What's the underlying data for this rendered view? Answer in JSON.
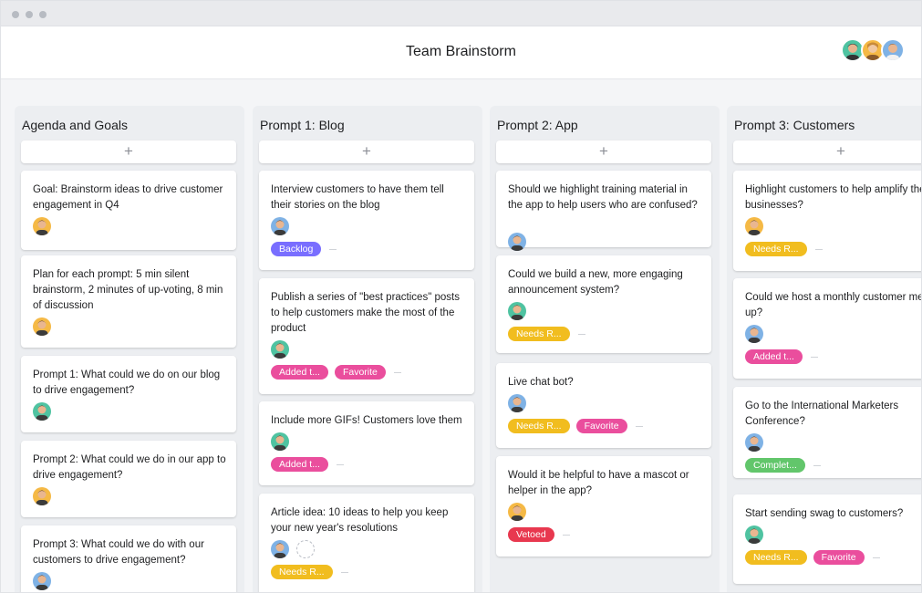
{
  "board": {
    "title": "Team Brainstorm"
  },
  "colors": {
    "backlog": "#796eff",
    "pink": "#ea4e9d",
    "yellow": "#f1bd1f",
    "red": "#e8384f",
    "green": "#62c66b"
  },
  "columns": [
    {
      "title": "Agenda and Goals",
      "add_label": "+",
      "cards": [
        {
          "text": "Goal: Brainstorm ideas to drive customer engagement in Q4",
          "tags": []
        },
        {
          "text": "Plan for each prompt: 5 min silent brainstorm, 2 minutes of up-voting, 8 min of discussion",
          "tags": []
        },
        {
          "text": "Prompt 1: What could we do on our blog to drive engagement?",
          "tags": []
        },
        {
          "text": "Prompt 2: What could we do in our app to drive engagement?",
          "tags": []
        },
        {
          "text": "Prompt 3: What could we do with our customers to drive engagement?",
          "tags": []
        }
      ]
    },
    {
      "title": "Prompt 1: Blog",
      "add_label": "+",
      "cards": [
        {
          "text": "Interview customers to have them tell their stories on the blog",
          "tags": [
            "Backlog"
          ]
        },
        {
          "text": "Publish a series of \"best practices\" posts to help customers make the most of the product",
          "tags": [
            "Added t...",
            "Favorite"
          ]
        },
        {
          "text": "Include more GIFs! Customers love them",
          "tags": [
            "Added t..."
          ]
        },
        {
          "text": "Article idea: 10 ideas to help you keep your new year's resolutions",
          "tags": [
            "Needs R..."
          ]
        }
      ]
    },
    {
      "title": "Prompt 2: App",
      "add_label": "+",
      "cards": [
        {
          "text": "Should we highlight training material in the app to help users who are confused?",
          "tags": []
        },
        {
          "text": "Could we build a new, more engaging announcement system?",
          "tags": [
            "Needs R..."
          ]
        },
        {
          "text": "Live chat bot?",
          "tags": [
            "Needs R...",
            "Favorite"
          ]
        },
        {
          "text": "Would it be helpful to have a mascot or helper in the app?",
          "tags": [
            "Vetoed"
          ]
        }
      ]
    },
    {
      "title": "Prompt 3: Customers",
      "add_label": "+",
      "cards": [
        {
          "text": "Highlight customers to help amplify their businesses?",
          "tags": [
            "Needs R..."
          ]
        },
        {
          "text": "Could we host a monthly customer meet-up?",
          "tags": [
            "Added t..."
          ]
        },
        {
          "text": "Go to the International Marketers Conference?",
          "tags": [
            "Complet..."
          ]
        },
        {
          "text": "Start sending swag to customers?",
          "tags": [
            "Needs R...",
            "Favorite"
          ]
        }
      ]
    }
  ]
}
